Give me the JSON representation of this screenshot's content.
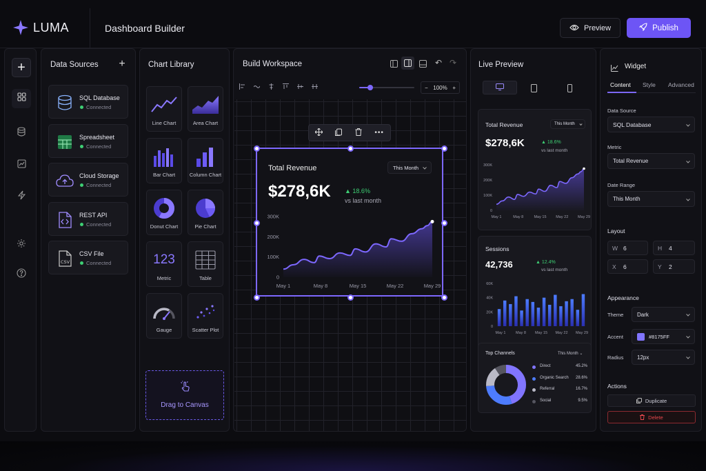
{
  "app": {
    "brand": "LUMA",
    "title": "Dashboard Builder"
  },
  "header": {
    "preview_label": "Preview",
    "publish_label": "Publish"
  },
  "colors": {
    "accent": "#8175FF",
    "positive": "#3ECF74",
    "danger": "#E5484D",
    "background": "#0C0C10"
  },
  "left_nav": {
    "icons": [
      "plus-icon",
      "grid-icon",
      "database-icon",
      "chart-icon",
      "lightning-icon",
      "settings-icon",
      "help-icon"
    ]
  },
  "data_sources": {
    "title": "Data Sources",
    "items": [
      {
        "name": "SQL Database",
        "status": "Connected",
        "icon": "database-icon"
      },
      {
        "name": "Spreadsheet",
        "status": "Connected",
        "icon": "spreadsheet-icon"
      },
      {
        "name": "Cloud Storage",
        "status": "Connected",
        "icon": "cloud-icon"
      },
      {
        "name": "REST API",
        "status": "Connected",
        "icon": "code-file-icon"
      },
      {
        "name": "CSV File",
        "status": "Connected",
        "icon": "csv-file-icon"
      }
    ]
  },
  "chart_library": {
    "title": "Chart Library",
    "items": [
      {
        "label": "Line Chart"
      },
      {
        "label": "Area Chart"
      },
      {
        "label": "Bar Chart"
      },
      {
        "label": "Column Chart"
      },
      {
        "label": "Donut Chart"
      },
      {
        "label": "Pie Chart"
      },
      {
        "label": "Metric",
        "glyph": "123"
      },
      {
        "label": "Table"
      },
      {
        "label": "Gauge"
      },
      {
        "label": "Scatter Plot"
      }
    ],
    "drag_label": "Drag to Canvas"
  },
  "workspace": {
    "title": "Build Workspace",
    "zoom": "100%",
    "progress_zoom": 0.2,
    "widget": {
      "title": "Total Revenue",
      "filter": "This Month",
      "value": "$278,6K",
      "delta": "18.6%",
      "delta_sub": "vs last month"
    }
  },
  "live_preview": {
    "title": "Live Preview",
    "revenue": {
      "title": "Total Revenue",
      "filter": "This Month",
      "value": "$278,6K",
      "delta": "18.6%",
      "delta_sub": "vs last month"
    },
    "sessions": {
      "title": "Sessions",
      "value": "42,736",
      "delta": "12.4%",
      "delta_sub": "vs last month"
    },
    "channels": {
      "title": "Top Channels",
      "filter": "This Month",
      "items": [
        {
          "name": "Direct",
          "value": "45.2%",
          "color": "#8175FF"
        },
        {
          "name": "Organic Search",
          "value": "28.6%",
          "color": "#4D7CFE"
        },
        {
          "name": "Referral",
          "value": "16.7%",
          "color": "#B9B9C6"
        },
        {
          "name": "Social",
          "value": "9.5%",
          "color": "#55555F"
        }
      ]
    }
  },
  "widget_panel": {
    "title": "Widget",
    "tabs": [
      "Content",
      "Style",
      "Advanced"
    ],
    "data_source_label": "Data Source",
    "data_source": "SQL Database",
    "metric_label": "Metric",
    "metric": "Total Revenue",
    "date_range_label": "Date Range",
    "date_range": "This Month",
    "layout_label": "Layout",
    "layout": {
      "w": "6",
      "h": "4",
      "x": "6",
      "y": "2"
    },
    "layout_keys": {
      "w": "W",
      "h": "H",
      "x": "X",
      "y": "Y"
    },
    "appearance_label": "Appearance",
    "theme_label": "Theme",
    "theme": "Dark",
    "accent_label": "Accent",
    "accent": "#8175FF",
    "radius_label": "Radius",
    "radius": "12px",
    "actions_label": "Actions",
    "duplicate_label": "Duplicate",
    "delete_label": "Delete"
  },
  "chart_data": [
    {
      "type": "area",
      "title": "Total Revenue",
      "x_ticks": [
        "May 1",
        "May 8",
        "May 15",
        "May 22",
        "May 29"
      ],
      "y_ticks": [
        "0",
        "100K",
        "200K",
        "300K"
      ],
      "ylim": [
        0,
        300000
      ],
      "x": [
        1,
        3,
        5,
        7,
        8,
        10,
        12,
        14,
        15,
        17,
        19,
        21,
        22,
        24,
        26,
        28,
        29,
        30
      ],
      "y": [
        40000,
        62000,
        88000,
        72000,
        105000,
        92000,
        120000,
        108000,
        140000,
        125000,
        165000,
        150000,
        190000,
        178000,
        215000,
        240000,
        255000,
        275000
      ]
    },
    {
      "type": "bar",
      "title": "Sessions",
      "x_ticks": [
        "May 1",
        "May 8",
        "May 15",
        "May 22",
        "May 29"
      ],
      "y_ticks": [
        "0",
        "20K",
        "40K",
        "60K"
      ],
      "ylim": [
        0,
        60000
      ],
      "values": [
        24000,
        36000,
        31000,
        42000,
        22000,
        38000,
        34000,
        26000,
        40000,
        30000,
        44000,
        28000,
        35000,
        38000,
        23000,
        45000
      ]
    },
    {
      "type": "pie",
      "title": "Top Channels",
      "categories": [
        "Direct",
        "Organic Search",
        "Referral",
        "Social"
      ],
      "values": [
        45.2,
        28.6,
        16.7,
        9.5
      ]
    }
  ]
}
